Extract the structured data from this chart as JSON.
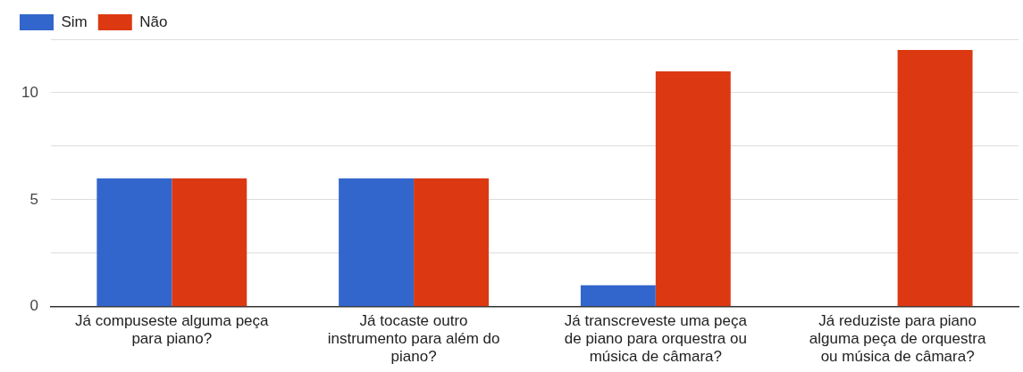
{
  "chart_data": {
    "type": "bar",
    "categories": [
      "Já compuseste alguma peça para piano?",
      "Já tocaste outro instrumento para além do piano?",
      "Já transcreveste uma peça de piano para orquestra ou música de câmara?",
      "Já reduziste para piano alguma peça de orquestra ou música de câmara?"
    ],
    "series": [
      {
        "name": "Sim",
        "color": "#3366cc",
        "values": [
          6,
          6,
          1,
          0
        ]
      },
      {
        "name": "Não",
        "color": "#dc3912",
        "values": [
          6,
          6,
          11,
          12
        ]
      }
    ],
    "ylim": [
      0,
      12.5
    ],
    "yticks": [
      0,
      {
        "value": 2.5,
        "label": null
      },
      5,
      {
        "value": 7.5,
        "label": null
      },
      10,
      {
        "value": 12.5,
        "label": null
      }
    ],
    "grid": "y",
    "legend": "top left"
  }
}
